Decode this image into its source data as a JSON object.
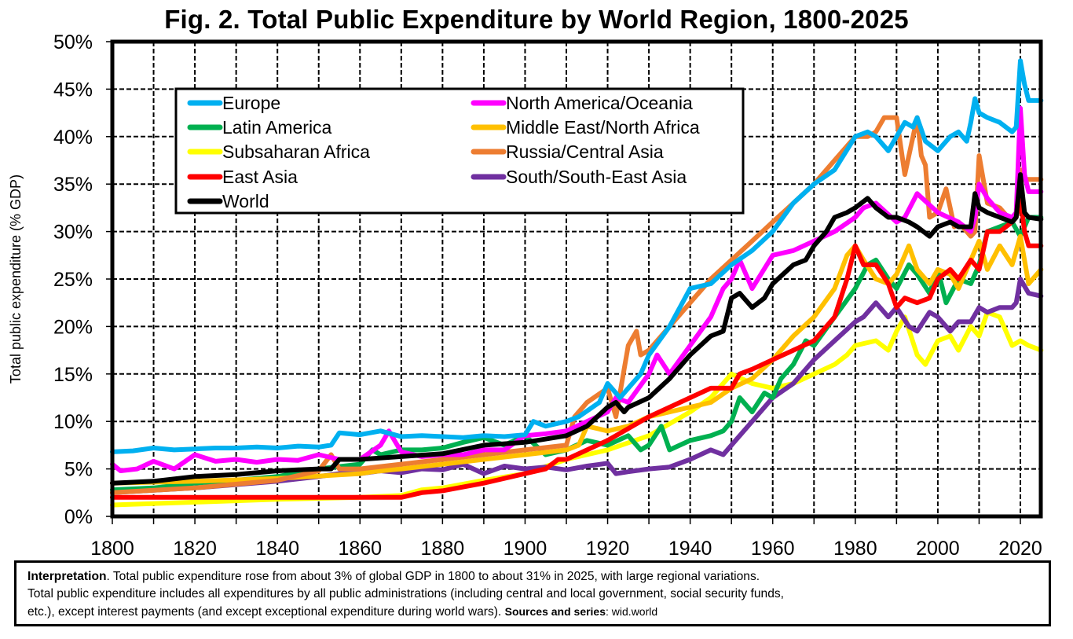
{
  "chart_data": {
    "type": "line",
    "title": "Fig. 2. Total Public Expenditure by World Region, 1800-2025",
    "xlabel": "",
    "ylabel": "Total public expenditure (% GDP)",
    "xlim": [
      1800,
      2025
    ],
    "ylim": [
      0,
      50
    ],
    "x_ticks": [
      1800,
      1820,
      1840,
      1860,
      1880,
      1900,
      1920,
      1940,
      1960,
      1980,
      2000,
      2020
    ],
    "x_tick_labels": [
      "1800",
      "1820",
      "1840",
      "1860",
      "1880",
      "1900",
      "1920",
      "1940",
      "1960",
      "1980",
      "2000",
      "2020"
    ],
    "y_ticks": [
      0,
      5,
      10,
      15,
      20,
      25,
      30,
      35,
      40,
      45,
      50
    ],
    "y_tick_labels": [
      "0%",
      "5%",
      "10%",
      "15%",
      "20%",
      "25%",
      "30%",
      "35%",
      "40%",
      "45%",
      "50%"
    ],
    "grid": true,
    "legend_position": "top-left",
    "legend_columns": 2,
    "series": [
      {
        "name": "Europe",
        "color": "#00B0F0",
        "x": [
          1800,
          1805,
          1810,
          1815,
          1820,
          1825,
          1830,
          1835,
          1840,
          1845,
          1850,
          1853,
          1855,
          1860,
          1865,
          1870,
          1875,
          1880,
          1885,
          1890,
          1895,
          1900,
          1902,
          1905,
          1910,
          1913,
          1918,
          1920,
          1923,
          1925,
          1928,
          1930,
          1935,
          1940,
          1945,
          1950,
          1955,
          1960,
          1965,
          1970,
          1975,
          1980,
          1983,
          1985,
          1988,
          1990,
          1992,
          1994,
          1995,
          1997,
          2000,
          2003,
          2005,
          2007,
          2008,
          2009,
          2010,
          2012,
          2015,
          2018,
          2019,
          2020,
          2021,
          2022,
          2025
        ],
        "y": [
          6.8,
          6.9,
          7.2,
          7.0,
          7.1,
          7.2,
          7.2,
          7.3,
          7.2,
          7.4,
          7.3,
          7.5,
          8.8,
          8.6,
          9.0,
          8.4,
          8.5,
          8.4,
          8.3,
          8.5,
          8.4,
          8.6,
          10.0,
          9.5,
          10.0,
          10.5,
          12.0,
          14.0,
          12.5,
          13.5,
          15.0,
          17.0,
          20.0,
          24.0,
          24.5,
          26.5,
          28.0,
          30.0,
          33.0,
          35.0,
          36.5,
          40.0,
          40.5,
          40.0,
          38.5,
          40.0,
          41.5,
          41.0,
          42.0,
          39.5,
          38.5,
          40.0,
          40.5,
          39.5,
          41.5,
          44.0,
          42.5,
          42.0,
          41.5,
          40.5,
          41.0,
          48.0,
          45.5,
          43.8,
          43.8
        ]
      },
      {
        "name": "North America/Oceania",
        "color": "#FF00FF",
        "x": [
          1800,
          1802,
          1806,
          1810,
          1815,
          1820,
          1825,
          1830,
          1835,
          1840,
          1845,
          1850,
          1855,
          1860,
          1865,
          1867,
          1870,
          1875,
          1880,
          1885,
          1890,
          1895,
          1900,
          1905,
          1910,
          1915,
          1920,
          1922,
          1925,
          1930,
          1932,
          1935,
          1940,
          1945,
          1948,
          1950,
          1952,
          1955,
          1960,
          1965,
          1970,
          1975,
          1980,
          1982,
          1985,
          1990,
          1992,
          1995,
          2000,
          2005,
          2008,
          2009,
          2010,
          2012,
          2015,
          2018,
          2019,
          2020,
          2021,
          2022,
          2025
        ],
        "y": [
          5.5,
          4.8,
          5.0,
          5.8,
          5.0,
          6.5,
          5.8,
          6.0,
          5.7,
          6.0,
          5.9,
          6.5,
          6.0,
          6.0,
          7.5,
          9.0,
          6.8,
          6.3,
          6.5,
          6.5,
          7.0,
          7.0,
          8.5,
          8.7,
          9.0,
          10.0,
          11.0,
          12.5,
          12.0,
          15.0,
          17.0,
          15.0,
          18.0,
          21.0,
          24.0,
          25.0,
          27.0,
          24.0,
          27.5,
          28.0,
          29.0,
          30.0,
          31.5,
          32.5,
          33.0,
          31.0,
          31.5,
          34.0,
          32.0,
          31.0,
          30.0,
          31.5,
          35.0,
          33.5,
          32.0,
          31.5,
          32.0,
          43.0,
          36.0,
          34.2,
          34.2
        ]
      },
      {
        "name": "Latin America",
        "color": "#00B050",
        "x": [
          1800,
          1810,
          1820,
          1830,
          1840,
          1850,
          1860,
          1863,
          1865,
          1870,
          1875,
          1880,
          1885,
          1890,
          1895,
          1900,
          1905,
          1910,
          1915,
          1920,
          1925,
          1928,
          1930,
          1933,
          1935,
          1940,
          1945,
          1948,
          1950,
          1952,
          1955,
          1958,
          1960,
          1962,
          1965,
          1968,
          1970,
          1975,
          1980,
          1983,
          1985,
          1988,
          1990,
          1993,
          1995,
          1998,
          2000,
          2002,
          2005,
          2008,
          2010,
          2012,
          2015,
          2018,
          2020,
          2022,
          2025
        ],
        "y": [
          2.8,
          3.0,
          3.5,
          3.8,
          4.2,
          5.0,
          5.5,
          7.0,
          6.5,
          7.0,
          7.0,
          7.2,
          7.8,
          8.3,
          7.5,
          8.5,
          6.5,
          7.0,
          8.0,
          7.5,
          8.5,
          7.0,
          7.5,
          9.5,
          7.0,
          8.0,
          8.5,
          9.0,
          10.0,
          12.5,
          11.0,
          13.0,
          12.5,
          14.5,
          16.0,
          18.5,
          18.0,
          21.0,
          24.0,
          26.5,
          27.0,
          25.0,
          24.0,
          26.5,
          25.5,
          23.5,
          26.0,
          22.5,
          25.0,
          24.5,
          26.5,
          30.0,
          30.5,
          31.0,
          29.5,
          31.5,
          31.5
        ]
      },
      {
        "name": "Middle East/North Africa",
        "color": "#FFC000",
        "x": [
          1800,
          1820,
          1840,
          1860,
          1863,
          1870,
          1880,
          1890,
          1900,
          1910,
          1913,
          1915,
          1920,
          1925,
          1930,
          1935,
          1940,
          1945,
          1950,
          1955,
          1960,
          1965,
          1970,
          1975,
          1978,
          1980,
          1982,
          1985,
          1988,
          1990,
          1993,
          1995,
          1998,
          2000,
          2003,
          2005,
          2008,
          2010,
          2012,
          2015,
          2018,
          2020,
          2022,
          2025
        ],
        "y": [
          3.5,
          3.7,
          4.0,
          4.5,
          4.7,
          5.0,
          5.5,
          6.0,
          6.5,
          7.0,
          7.5,
          9.5,
          9.0,
          9.5,
          10.5,
          11.0,
          11.5,
          12.0,
          13.5,
          14.5,
          16.5,
          19.0,
          21.0,
          24.0,
          27.5,
          28.5,
          27.0,
          25.0,
          24.5,
          25.5,
          28.5,
          26.0,
          24.5,
          26.0,
          25.5,
          24.0,
          27.0,
          29.0,
          26.0,
          28.5,
          26.5,
          29.5,
          24.5,
          26.0
        ]
      },
      {
        "name": "Subsaharan Africa",
        "color": "#FFFF00",
        "x": [
          1800,
          1820,
          1840,
          1860,
          1870,
          1875,
          1880,
          1890,
          1900,
          1910,
          1920,
          1930,
          1940,
          1945,
          1948,
          1950,
          1955,
          1960,
          1965,
          1970,
          1975,
          1978,
          1980,
          1985,
          1988,
          1990,
          1992,
          1995,
          1997,
          2000,
          2003,
          2005,
          2008,
          2010,
          2012,
          2015,
          2018,
          2020,
          2022,
          2025
        ],
        "y": [
          1.2,
          1.5,
          1.8,
          2.0,
          2.2,
          2.8,
          3.0,
          3.8,
          4.5,
          6.0,
          7.0,
          8.5,
          11.0,
          12.5,
          14.0,
          15.0,
          14.0,
          13.5,
          14.0,
          15.0,
          16.0,
          17.0,
          18.0,
          18.5,
          17.5,
          19.5,
          21.0,
          17.0,
          16.0,
          18.5,
          19.0,
          17.5,
          20.0,
          19.0,
          21.5,
          21.0,
          18.0,
          18.5,
          18.0,
          17.5
        ]
      },
      {
        "name": "Russia/Central Asia",
        "color": "#ED7D31",
        "x": [
          1800,
          1820,
          1840,
          1850,
          1853,
          1855,
          1860,
          1870,
          1880,
          1890,
          1900,
          1910,
          1912,
          1915,
          1920,
          1922,
          1925,
          1927,
          1928,
          1930,
          1935,
          1940,
          1945,
          1950,
          1955,
          1960,
          1965,
          1970,
          1975,
          1980,
          1983,
          1985,
          1987,
          1990,
          1992,
          1993,
          1995,
          1996,
          1997,
          1998,
          2000,
          2002,
          2004,
          2005,
          2008,
          2009,
          2010,
          2012,
          2015,
          2018,
          2019,
          2020,
          2021,
          2022,
          2025
        ],
        "y": [
          2.5,
          3.0,
          3.8,
          4.8,
          6.5,
          5.0,
          5.0,
          5.5,
          6.0,
          6.5,
          7.0,
          7.5,
          10.5,
          12.0,
          13.5,
          10.5,
          18.0,
          19.5,
          17.0,
          17.5,
          20.0,
          22.5,
          25.0,
          27.0,
          29.0,
          31.0,
          33.0,
          35.0,
          37.5,
          40.0,
          40.0,
          40.5,
          42.0,
          42.0,
          36.0,
          38.0,
          42.0,
          38.0,
          37.0,
          31.5,
          32.0,
          34.5,
          30.5,
          31.0,
          29.5,
          30.0,
          38.0,
          33.0,
          32.5,
          31.0,
          31.5,
          36.5,
          35.5,
          35.5,
          35.5
        ]
      },
      {
        "name": "East Asia",
        "color": "#FF0000",
        "x": [
          1800,
          1820,
          1840,
          1860,
          1870,
          1875,
          1880,
          1890,
          1900,
          1905,
          1908,
          1910,
          1920,
          1930,
          1940,
          1945,
          1950,
          1952,
          1955,
          1960,
          1965,
          1970,
          1975,
          1978,
          1980,
          1982,
          1985,
          1988,
          1990,
          1992,
          1995,
          1998,
          2000,
          2003,
          2005,
          2008,
          2010,
          2012,
          2015,
          2018,
          2019,
          2020,
          2021,
          2022,
          2025
        ],
        "y": [
          2.0,
          2.0,
          2.0,
          2.0,
          2.0,
          2.5,
          2.7,
          3.5,
          4.5,
          5.0,
          6.0,
          6.0,
          8.0,
          10.5,
          12.5,
          13.5,
          13.5,
          15.0,
          15.5,
          16.5,
          17.5,
          18.5,
          21.0,
          25.0,
          28.5,
          26.5,
          26.5,
          24.5,
          22.0,
          23.0,
          22.5,
          23.0,
          25.0,
          26.0,
          25.0,
          27.0,
          26.0,
          30.0,
          30.0,
          31.0,
          31.5,
          33.5,
          30.0,
          28.5,
          28.5
        ]
      },
      {
        "name": "South/South-East Asia",
        "color": "#7030A0",
        "x": [
          1800,
          1820,
          1840,
          1850,
          1855,
          1860,
          1865,
          1870,
          1875,
          1880,
          1885,
          1890,
          1895,
          1900,
          1905,
          1910,
          1915,
          1920,
          1922,
          1925,
          1930,
          1935,
          1940,
          1945,
          1948,
          1950,
          1955,
          1960,
          1965,
          1970,
          1975,
          1980,
          1982,
          1985,
          1988,
          1990,
          1993,
          1995,
          1998,
          2000,
          2003,
          2005,
          2008,
          2010,
          2012,
          2015,
          2018,
          2019,
          2020,
          2022,
          2025
        ],
        "y": [
          2.5,
          3.0,
          3.7,
          4.2,
          4.5,
          4.5,
          4.8,
          4.6,
          5.0,
          4.9,
          5.5,
          4.5,
          5.3,
          5.0,
          5.2,
          4.9,
          5.3,
          5.6,
          4.5,
          4.7,
          5.0,
          5.2,
          6.0,
          7.0,
          6.5,
          7.5,
          10.0,
          12.5,
          14.0,
          16.5,
          18.5,
          20.5,
          21.0,
          22.5,
          21.0,
          22.0,
          20.0,
          19.5,
          21.5,
          21.0,
          19.5,
          20.5,
          20.5,
          22.0,
          21.5,
          22.0,
          22.0,
          22.5,
          25.0,
          23.5,
          23.2
        ]
      },
      {
        "name": "World",
        "color": "#000000",
        "x": [
          1800,
          1810,
          1820,
          1830,
          1840,
          1850,
          1853,
          1855,
          1860,
          1870,
          1880,
          1890,
          1900,
          1910,
          1915,
          1920,
          1922,
          1924,
          1925,
          1930,
          1935,
          1940,
          1945,
          1948,
          1950,
          1952,
          1955,
          1958,
          1960,
          1965,
          1968,
          1970,
          1973,
          1975,
          1978,
          1980,
          1983,
          1985,
          1988,
          1990,
          1993,
          1995,
          1998,
          2000,
          2003,
          2005,
          2008,
          2009,
          2010,
          2012,
          2015,
          2018,
          2019,
          2020,
          2021,
          2022,
          2025
        ],
        "y": [
          3.5,
          3.7,
          4.2,
          4.4,
          4.8,
          5.0,
          5.0,
          6.0,
          6.0,
          6.3,
          6.6,
          7.5,
          7.8,
          8.5,
          9.5,
          11.5,
          12.0,
          11.0,
          11.5,
          12.5,
          14.5,
          17.0,
          19.0,
          19.5,
          23.0,
          23.5,
          22.0,
          23.0,
          24.5,
          26.5,
          27.0,
          28.5,
          30.0,
          31.5,
          32.0,
          32.5,
          33.5,
          32.5,
          31.5,
          31.5,
          31.0,
          30.5,
          29.5,
          30.5,
          31.0,
          30.5,
          30.5,
          34.0,
          32.5,
          32.0,
          31.5,
          31.0,
          31.5,
          36.0,
          32.0,
          31.5,
          31.3
        ]
      }
    ],
    "legend": [
      {
        "name": "Europe",
        "color": "#00B0F0"
      },
      {
        "name": "North America/Oceania",
        "color": "#FF00FF"
      },
      {
        "name": "Latin America",
        "color": "#00B050"
      },
      {
        "name": "Middle East/North Africa",
        "color": "#FFC000"
      },
      {
        "name": "Subsaharan Africa",
        "color": "#FFFF00"
      },
      {
        "name": "Russia/Central Asia",
        "color": "#ED7D31"
      },
      {
        "name": "East Asia",
        "color": "#FF0000"
      },
      {
        "name": "South/South-East Asia",
        "color": "#7030A0"
      },
      {
        "name": "World",
        "color": "#000000"
      }
    ],
    "draw_order": [
      "Subsaharan Africa",
      "South/South-East Asia",
      "Latin America",
      "Middle East/North Africa",
      "East Asia",
      "Russia/Central Asia",
      "North America/Oceania",
      "Europe",
      "World"
    ]
  },
  "note": {
    "interpretation_label": "Interpretation",
    "interpretation_text": ". Total public expenditure rose from about 3% of global GDP in 1800 to about 31% in 2025, with large regional variations.",
    "line2": "Total public expenditure includes all expenditures by all public administrations (including central and local government, social security funds,",
    "line3": "etc.), except interest payments (and except exceptional expenditure during world wars). ",
    "sources_label": "Sources and series",
    "sources_value": ": wid.world"
  }
}
